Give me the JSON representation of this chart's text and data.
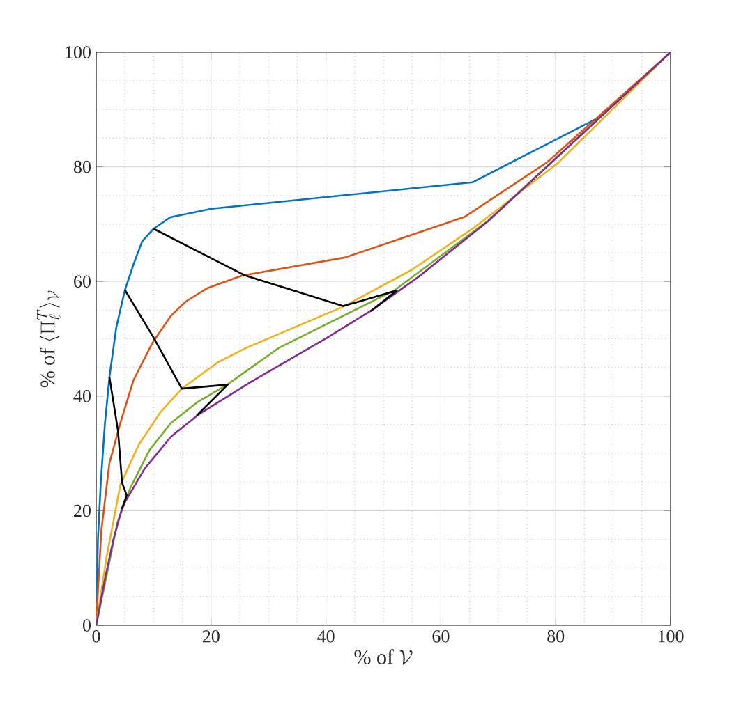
{
  "chart_data": {
    "type": "line",
    "xlabel": "\\%\\ \\mathrm{of}\\ \\mathcal{V}",
    "ylabel": "\\%\\ \\mathrm{of}\\ \\langle \\Pi_\\ell^T \\rangle_{\\mathcal{V}}",
    "xlim": [
      0,
      100
    ],
    "ylim": [
      0,
      100
    ],
    "xticks": [
      0,
      20,
      40,
      60,
      80,
      100
    ],
    "yticks": [
      0,
      20,
      40,
      60,
      80,
      100
    ],
    "grid": true,
    "marker": "none",
    "line_style": "solid",
    "series": [
      {
        "color": "#0072bd",
        "x": [
          0,
          0.3,
          0.8,
          1.5,
          2.3,
          3.5,
          5.0,
          6.5,
          8.0,
          10.0,
          12.9,
          20.1,
          65.5,
          87.9,
          100
        ],
        "values": [
          0,
          15,
          25,
          35,
          43.3,
          52,
          58.5,
          63,
          67,
          69.2,
          71.2,
          72.7,
          77.3,
          88.8,
          100
        ]
      },
      {
        "color": "#d95319",
        "x": [
          0,
          0.1,
          0.9,
          2.3,
          4.2,
          6.5,
          9.8,
          13.0,
          15.6,
          19.3,
          25.3,
          43.4,
          64.2,
          78.5,
          100
        ],
        "values": [
          0,
          2.5,
          16.6,
          28.3,
          35.3,
          42.8,
          49.3,
          54.0,
          56.5,
          58.8,
          61.0,
          64.2,
          71.3,
          80.8,
          100
        ]
      },
      {
        "color": "#edb120",
        "x": [
          0,
          0.1,
          1.8,
          4.2,
          7.4,
          11.2,
          14.9,
          21.2,
          26.1,
          43.0,
          54.9,
          65.8,
          80.3,
          100
        ],
        "values": [
          0,
          0.7,
          11.9,
          24.5,
          31.5,
          37.2,
          41.3,
          45.9,
          48.4,
          55.6,
          62.0,
          69.4,
          80.6,
          100
        ]
      },
      {
        "color": "#77ac30",
        "x": [
          0,
          1.8,
          3.7,
          6.0,
          9.3,
          13.0,
          17.7,
          22.8,
          31.8,
          52.0,
          68.2,
          100
        ],
        "values": [
          0,
          8.6,
          18.0,
          24.1,
          30.6,
          35.3,
          39.0,
          42.0,
          48.4,
          58.5,
          70.6,
          100
        ]
      },
      {
        "color": "#7e2f8e",
        "x": [
          0,
          1.5,
          3.0,
          4.6,
          8.4,
          13.0,
          17.7,
          27.0,
          39.9,
          48.0,
          56.1,
          68.2,
          100
        ],
        "values": [
          0,
          8,
          15,
          20.8,
          27.3,
          32.9,
          36.7,
          42.5,
          50.0,
          55.0,
          60.8,
          70.5,
          100
        ]
      },
      {
        "color": "#000000",
        "x": [
          10.0,
          25.8,
          43.0,
          52.3,
          47.8
        ],
        "values": [
          69.2,
          61.1,
          55.7,
          58.4,
          54.8
        ]
      },
      {
        "color": "#000000",
        "x": [
          5.0,
          10.0,
          14.9,
          22.9,
          17.5
        ],
        "values": [
          58.5,
          50.2,
          41.3,
          42.0,
          36.6
        ]
      },
      {
        "color": "#000000",
        "x": [
          2.3,
          3.8,
          4.5,
          5.3,
          4.5
        ],
        "values": [
          43.3,
          33.9,
          24.9,
          22.7,
          20.3
        ]
      }
    ]
  }
}
